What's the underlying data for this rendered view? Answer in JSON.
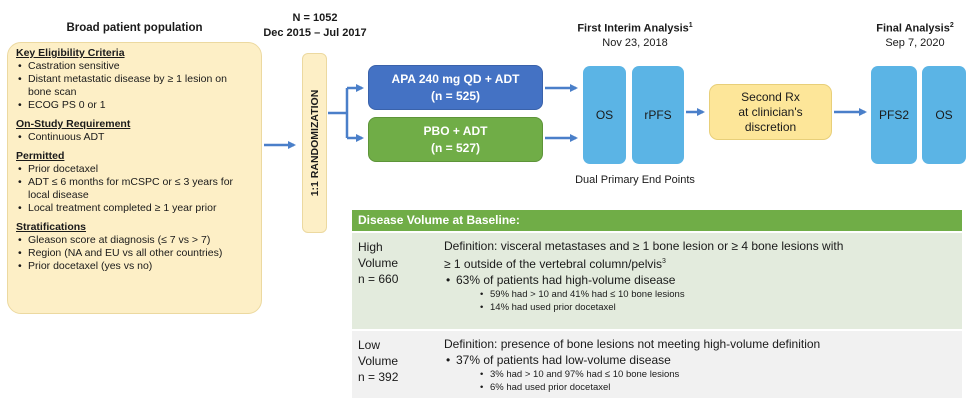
{
  "left_panel": {
    "title": "Broad patient population",
    "sections": [
      {
        "heading": "Key Eligibility Criteria",
        "items": [
          "Castration sensitive",
          "Distant metastatic disease by ≥ 1 lesion on bone scan",
          "ECOG PS 0 or 1"
        ]
      },
      {
        "heading": "On-Study Requirement",
        "items": [
          "Continuous ADT"
        ]
      },
      {
        "heading": "Permitted",
        "items": [
          "Prior docetaxel",
          "ADT ≤ 6 months for mCSPC or ≤ 3 years for local disease",
          "Local treatment completed ≥ 1 year prior"
        ]
      },
      {
        "heading": "Stratifications",
        "items": [
          "Gleason score at diagnosis (≤ 7 vs > 7)",
          "Region (NA and EU vs all other countries)",
          "Prior docetaxel (yes vs no)"
        ]
      }
    ]
  },
  "enrollment": {
    "n": "N = 1052",
    "period": "Dec 2015 – Jul 2017"
  },
  "randomization": {
    "label": "1:1 RANDOMIZATION"
  },
  "arms": {
    "apa": {
      "name": "APA 240 mg QD + ADT",
      "n": "(n = 525)"
    },
    "pbo": {
      "name": "PBO + ADT",
      "n": "(n = 527)"
    }
  },
  "first_interim": {
    "title": "First Interim Analysis",
    "sup": "1",
    "date": "Nov 23, 2018"
  },
  "endpoints": {
    "os": "OS",
    "rpfs": "rPFS",
    "caption": "Dual Primary End Points"
  },
  "second_rx": {
    "line1": "Second Rx",
    "line2": "at clinician's",
    "line3": "discretion"
  },
  "final_analysis": {
    "title": "Final Analysis",
    "sup": "2",
    "date": "Sep 7, 2020",
    "pfs2": "PFS2",
    "os": "OS"
  },
  "disease_volume": {
    "header": "Disease Volume at Baseline:",
    "high": {
      "label1": "High",
      "label2": "Volume",
      "label3": "n = 660",
      "definition1": "Definition: visceral metastases and ≥ 1 bone lesion or ≥ 4 bone lesions with",
      "definition2": "≥ 1 outside of the vertebral column/pelvis",
      "definition_sup": "3",
      "bullet": "63% of patients had high-volume disease",
      "sub1": "59% had > 10 and 41% had ≤ 10 bone lesions",
      "sub2": "14% had used prior docetaxel"
    },
    "low": {
      "label1": "Low",
      "label2": "Volume",
      "label3": "n = 392",
      "definition": "Definition: presence of bone lesions not meeting high-volume definition",
      "bullet": "37% of patients had low-volume disease",
      "sub1": "3% had > 10 and 97% had ≤ 10 bone lesions",
      "sub2": "6% had used prior docetaxel"
    }
  },
  "colors": {
    "cream": "#fdefc6",
    "blue_arm": "#4472c4",
    "green_arm": "#70ad47",
    "endpoint_blue": "#5bb4e5",
    "second_rx": "#fde699",
    "arrow": "#4a7fc9"
  }
}
